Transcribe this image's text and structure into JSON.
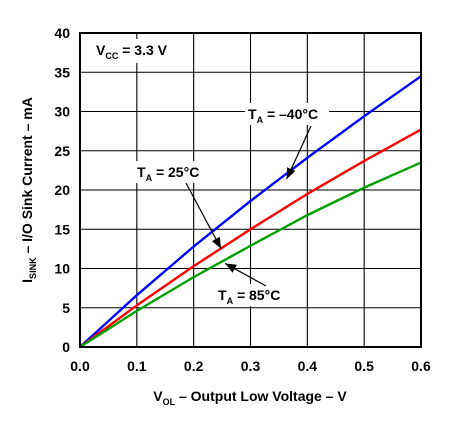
{
  "chart_data": {
    "type": "line",
    "title": "",
    "xlabel": {
      "main": "V",
      "sub": "OL",
      "rest": " – Output Low Voltage – V"
    },
    "ylabel": {
      "main": "I",
      "sub": "SINK",
      "rest": " – I/O Sink Current – mA"
    },
    "xlim": [
      0,
      0.6
    ],
    "ylim": [
      0,
      40
    ],
    "x_ticks": [
      "0.0",
      "0.1",
      "0.2",
      "0.3",
      "0.4",
      "0.5",
      "0.6"
    ],
    "y_ticks": [
      "0",
      "5",
      "10",
      "15",
      "20",
      "25",
      "30",
      "35",
      "40"
    ],
    "grid": true,
    "annotation": {
      "main": "V",
      "sub": "CC",
      "rest": " = 3.3 V"
    },
    "x": [
      0,
      0.1,
      0.2,
      0.3,
      0.4,
      0.5,
      0.6
    ],
    "series": [
      {
        "name": {
          "main": "T",
          "sub": "A",
          "rest": " = –40°C"
        },
        "color": "#0000ff",
        "values": [
          0,
          6.6,
          12.8,
          18.6,
          24.1,
          29.4,
          34.5
        ]
      },
      {
        "name": {
          "main": "T",
          "sub": "A",
          "rest": " = 25°C"
        },
        "color": "#ff0000",
        "values": [
          0,
          5.3,
          10.3,
          15.0,
          19.5,
          23.7,
          27.7
        ]
      },
      {
        "name": {
          "main": "T",
          "sub": "A",
          "rest": " = 85°C"
        },
        "color": "#00a000",
        "values": [
          0,
          4.6,
          8.9,
          12.9,
          16.8,
          20.3,
          23.5
        ]
      }
    ]
  }
}
